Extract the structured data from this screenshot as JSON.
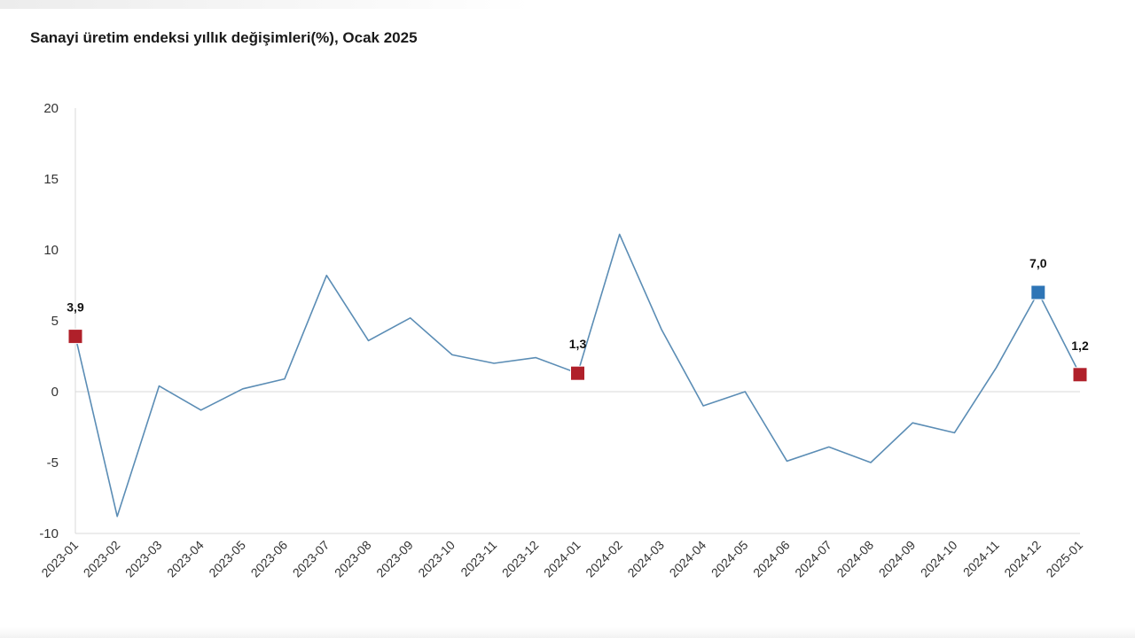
{
  "chart_data": {
    "type": "line",
    "title": "Sanayi üretim endeksi yıllık değişimleri(%), Ocak 2025",
    "xlabel": "",
    "ylabel": "",
    "ylim": [
      -10,
      20
    ],
    "yticks": [
      20,
      15,
      10,
      5,
      0,
      -5,
      -10
    ],
    "grid": false,
    "legend": "none",
    "categories": [
      "2023-01",
      "2023-02",
      "2023-03",
      "2023-04",
      "2023-05",
      "2023-06",
      "2023-07",
      "2023-08",
      "2023-09",
      "2023-10",
      "2023-11",
      "2023-12",
      "2024-01",
      "2024-02",
      "2024-03",
      "2024-04",
      "2024-05",
      "2024-06",
      "2024-07",
      "2024-08",
      "2024-09",
      "2024-10",
      "2024-11",
      "2024-12",
      "2025-01"
    ],
    "series": [
      {
        "values": [
          3.9,
          -8.8,
          0.4,
          -1.3,
          0.2,
          0.9,
          8.2,
          3.6,
          5.2,
          2.6,
          2.0,
          2.4,
          1.3,
          11.1,
          4.4,
          -1.0,
          0.0,
          -4.9,
          -3.9,
          -5.0,
          -2.2,
          -2.9,
          1.7,
          7.0,
          1.2
        ],
        "color": "#5b8db5"
      }
    ],
    "highlights": [
      {
        "index": 0,
        "label": "3,9",
        "color": "#b0202a"
      },
      {
        "index": 12,
        "label": "1,3",
        "color": "#b0202a"
      },
      {
        "index": 23,
        "label": "7,0",
        "color": "#2e75b6"
      },
      {
        "index": 24,
        "label": "1,2",
        "color": "#b0202a"
      }
    ],
    "zero_line_color": "#d9d9d9",
    "axis_color": "#d9d9d9"
  }
}
